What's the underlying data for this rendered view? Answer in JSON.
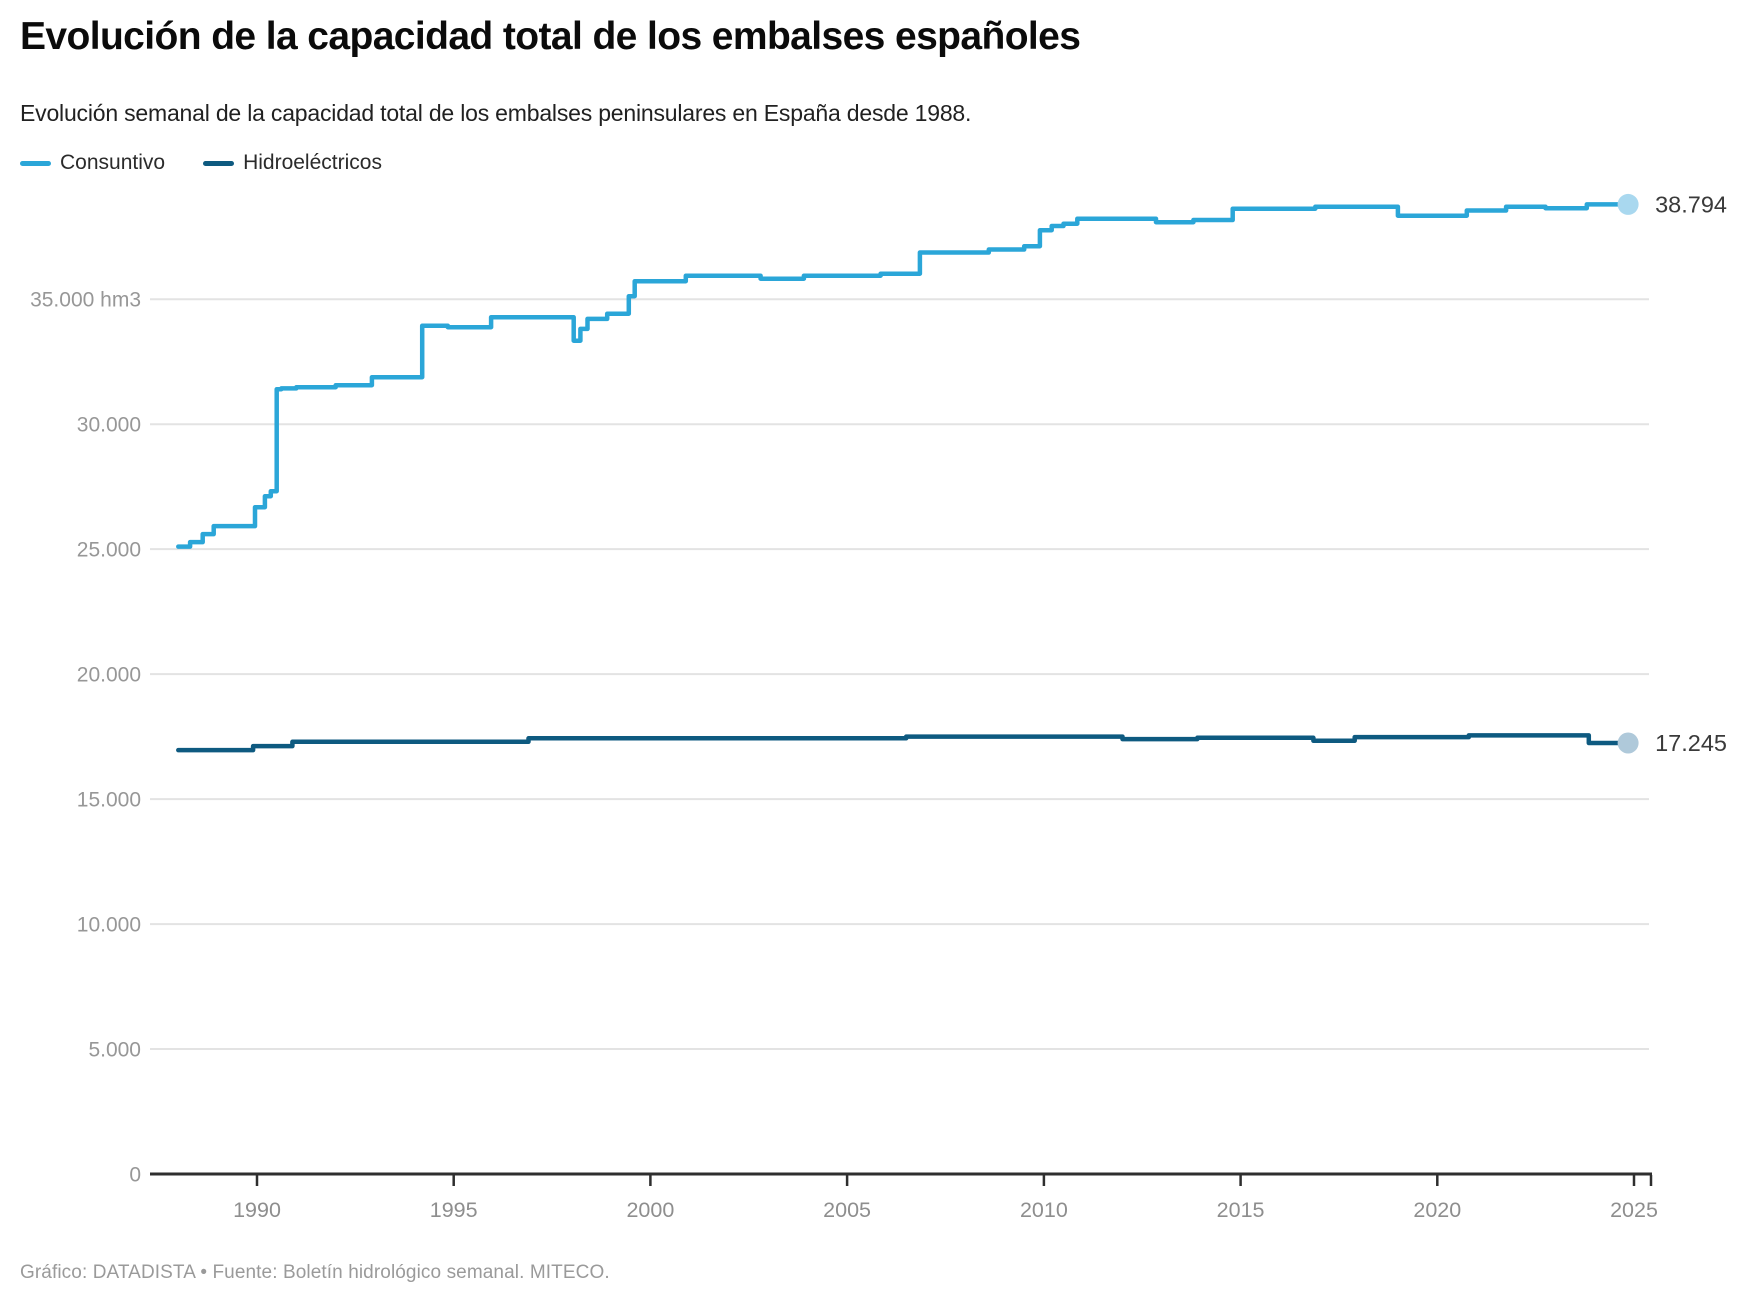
{
  "header": {
    "title": "Evolución de la capacidad total de los embalses españoles",
    "subtitle": "Evolución semanal de la capacidad total de los embalses peninsulares en España desde 1988."
  },
  "legend": [
    {
      "label": "Consuntivo",
      "color": "#2ba6d8"
    },
    {
      "label": "Hidroeléctricos",
      "color": "#0e5a80"
    }
  ],
  "footer": {
    "credit": "Gráfico: DATADISTA • Fuente: Boletín hidrológico semanal. MITECO."
  },
  "chart_data": {
    "type": "line",
    "step": true,
    "title": "Evolución de la capacidad total de los embalses españoles",
    "xlabel": "",
    "ylabel": "hm3",
    "xlim": [
      1988,
      2025.4
    ],
    "ylim": [
      0,
      39500
    ],
    "grid": "horizontal",
    "legend_position": "top-left",
    "x_ticks": [
      1990,
      1995,
      2000,
      2005,
      2010,
      2015,
      2020,
      2025
    ],
    "y_ticks": [
      {
        "value": 0,
        "label": "0"
      },
      {
        "value": 5000,
        "label": "5.000"
      },
      {
        "value": 10000,
        "label": "10.000"
      },
      {
        "value": 15000,
        "label": "15.000"
      },
      {
        "value": 20000,
        "label": "20.000"
      },
      {
        "value": 25000,
        "label": "25.000"
      },
      {
        "value": 30000,
        "label": "30.000"
      },
      {
        "value": 35000,
        "label": "35.000 hm3"
      }
    ],
    "series": [
      {
        "name": "Consuntivo",
        "color": "#2ba6d8",
        "dot_color": "#a9d8ef",
        "end_label": "38.794",
        "end_value": 38794,
        "points": [
          [
            1988.0,
            25100
          ],
          [
            1988.3,
            25280
          ],
          [
            1988.62,
            25600
          ],
          [
            1988.9,
            25920
          ],
          [
            1989.95,
            26680
          ],
          [
            1990.2,
            27120
          ],
          [
            1990.35,
            27320
          ],
          [
            1990.5,
            31400
          ],
          [
            1990.62,
            31430
          ],
          [
            1991.0,
            31480
          ],
          [
            1992.0,
            31560
          ],
          [
            1992.92,
            31880
          ],
          [
            1994.2,
            33940
          ],
          [
            1994.85,
            33880
          ],
          [
            1995.95,
            34280
          ],
          [
            1998.05,
            33340
          ],
          [
            1998.22,
            33810
          ],
          [
            1998.4,
            34210
          ],
          [
            1998.9,
            34420
          ],
          [
            1999.45,
            35120
          ],
          [
            1999.6,
            35720
          ],
          [
            2000.9,
            35940
          ],
          [
            2002.8,
            35820
          ],
          [
            2003.9,
            35940
          ],
          [
            2005.85,
            36020
          ],
          [
            2006.85,
            36870
          ],
          [
            2008.6,
            36990
          ],
          [
            2009.5,
            37120
          ],
          [
            2009.9,
            37760
          ],
          [
            2010.2,
            37930
          ],
          [
            2010.5,
            38020
          ],
          [
            2010.85,
            38220
          ],
          [
            2012.85,
            38080
          ],
          [
            2013.8,
            38170
          ],
          [
            2014.8,
            38620
          ],
          [
            2016.9,
            38700
          ],
          [
            2019.0,
            38340
          ],
          [
            2020.75,
            38550
          ],
          [
            2021.75,
            38700
          ],
          [
            2022.75,
            38640
          ],
          [
            2023.8,
            38794
          ],
          [
            2024.85,
            38794
          ]
        ]
      },
      {
        "name": "Hidroeléctricos",
        "color": "#0e5a80",
        "dot_color": "#afc9da",
        "end_label": "17.245",
        "end_value": 17245,
        "points": [
          [
            1988.0,
            16960
          ],
          [
            1989.9,
            17120
          ],
          [
            1990.9,
            17290
          ],
          [
            1996.9,
            17430
          ],
          [
            2006.5,
            17500
          ],
          [
            2012.0,
            17400
          ],
          [
            2013.9,
            17450
          ],
          [
            2016.85,
            17330
          ],
          [
            2017.9,
            17480
          ],
          [
            2020.8,
            17550
          ],
          [
            2023.85,
            17245
          ],
          [
            2024.85,
            17245
          ]
        ]
      }
    ]
  }
}
